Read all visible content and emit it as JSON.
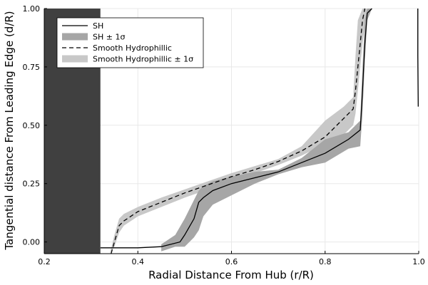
{
  "chart_data": {
    "type": "line",
    "title": "",
    "xlabel": "Radial Distance From Hub (r/R)",
    "ylabel": "Tangential distance From Leading Edge (d/R)",
    "xlim": [
      0.2,
      1.0
    ],
    "ylim": [
      -0.05,
      1.0
    ],
    "xticks": [
      0.2,
      0.4,
      0.6,
      0.8,
      1.0
    ],
    "xtick_labels": [
      "0.2",
      "0.4",
      "0.6",
      "0.8",
      "1.0"
    ],
    "yticks": [
      0.0,
      0.25,
      0.5,
      0.75,
      1.0
    ],
    "ytick_labels": [
      "0.00",
      "0.25",
      "0.50",
      "0.75",
      "1.00"
    ],
    "grid": true,
    "legend_position": "top-left",
    "shaded_region": {
      "x": [
        0.2,
        0.32
      ],
      "color": "#404040"
    },
    "series": [
      {
        "name": "SH",
        "style": "solid",
        "color": "#000000",
        "x": [
          0.32,
          0.35,
          0.4,
          0.45,
          0.49,
          0.5,
          0.52,
          0.53,
          0.54,
          0.56,
          0.6,
          0.65,
          0.7,
          0.75,
          0.8,
          0.85,
          0.875,
          0.88,
          0.885,
          0.89,
          0.9
        ],
        "y": [
          -0.025,
          -0.025,
          -0.025,
          -0.02,
          0.0,
          0.03,
          0.1,
          0.17,
          0.19,
          0.22,
          0.25,
          0.275,
          0.3,
          0.34,
          0.38,
          0.44,
          0.48,
          0.65,
          0.85,
          0.98,
          1.0
        ]
      },
      {
        "name": "SH ± 1σ",
        "style": "band",
        "color": "#a6a6a6",
        "x": [
          0.45,
          0.48,
          0.5,
          0.52,
          0.53,
          0.54,
          0.56,
          0.6,
          0.65,
          0.7,
          0.75,
          0.8,
          0.85,
          0.875,
          0.88,
          0.885,
          0.89,
          0.9
        ],
        "lower": [
          -0.04,
          -0.02,
          -0.02,
          0.02,
          0.05,
          0.11,
          0.16,
          0.2,
          0.25,
          0.29,
          0.32,
          0.34,
          0.4,
          0.41,
          0.55,
          0.78,
          0.95,
          1.0
        ],
        "upper": [
          -0.01,
          0.03,
          0.1,
          0.18,
          0.22,
          0.24,
          0.26,
          0.28,
          0.3,
          0.31,
          0.36,
          0.44,
          0.47,
          0.52,
          0.75,
          0.95,
          1.0,
          1.0
        ]
      },
      {
        "name": "Smooth Hydrophillic",
        "style": "dashed",
        "color": "#000000",
        "x": [
          0.343,
          0.35,
          0.36,
          0.37,
          0.4,
          0.45,
          0.5,
          0.55,
          0.6,
          0.65,
          0.7,
          0.75,
          0.8,
          0.85,
          0.86,
          0.865,
          0.87,
          0.875,
          0.88,
          0.885
        ],
        "y": [
          -0.05,
          0.0,
          0.07,
          0.09,
          0.13,
          0.17,
          0.21,
          0.245,
          0.28,
          0.31,
          0.345,
          0.39,
          0.45,
          0.55,
          0.57,
          0.65,
          0.75,
          0.85,
          0.95,
          1.0
        ]
      },
      {
        "name": "Smooth Hydrophillic ± 1σ",
        "style": "band",
        "color": "#c8c8c8",
        "x": [
          0.34,
          0.35,
          0.36,
          0.37,
          0.4,
          0.45,
          0.5,
          0.55,
          0.6,
          0.65,
          0.7,
          0.75,
          0.8,
          0.84,
          0.86,
          0.865,
          0.87,
          0.88,
          0.89
        ],
        "lower": [
          -0.05,
          -0.02,
          0.04,
          0.07,
          0.11,
          0.15,
          0.19,
          0.225,
          0.26,
          0.295,
          0.33,
          0.37,
          0.42,
          0.46,
          0.5,
          0.55,
          0.65,
          0.85,
          1.0
        ],
        "upper": [
          -0.05,
          0.03,
          0.1,
          0.12,
          0.15,
          0.19,
          0.225,
          0.26,
          0.295,
          0.325,
          0.355,
          0.41,
          0.52,
          0.58,
          0.62,
          0.8,
          0.95,
          1.0,
          1.0
        ]
      },
      {
        "name": "",
        "style": "solid",
        "color": "#000000",
        "x": [
          0.998,
          0.998,
          0.999
        ],
        "y": [
          1.0,
          0.8,
          0.58
        ]
      }
    ]
  }
}
